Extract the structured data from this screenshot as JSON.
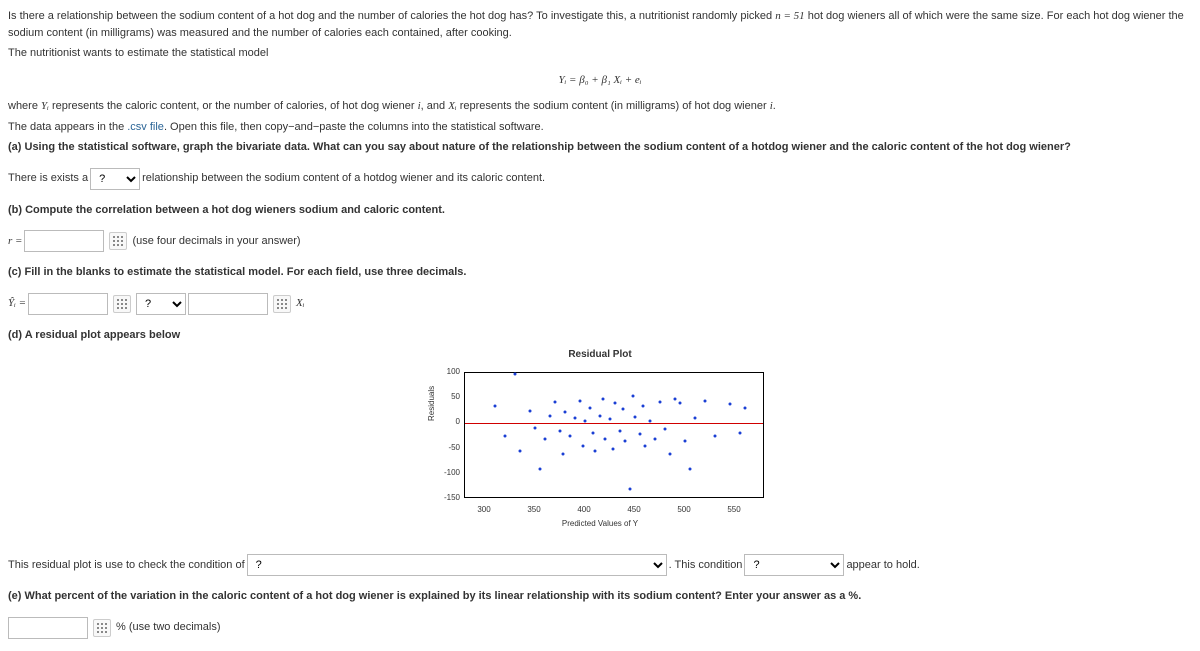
{
  "intro": {
    "line1_a": "Is there a relationship between the sodium content of a hot dog and the number of calories the hot dog has? To investigate this, a nutritionist randomly picked ",
    "n_eq": "n = 51",
    "line1_b": " hot dog wieners all of which were the same size. For each hot dog wiener the sodium content (in milligrams) was measured and the number of calories each contained, after cooking.",
    "line2": "The nutritionist wants to estimate the statistical model"
  },
  "equation": "Yᵢ = β₀ + β₁ Xᵢ + eᵢ",
  "where": {
    "a": "where ",
    "Yi": "Yᵢ",
    "b": " represents the caloric content, or the number of calories, of hot dog wiener ",
    "i1": "i",
    "c": ", and ",
    "Xi": "Xᵢ",
    "d": " represents the sodium content (in milligrams) of hot dog wiener ",
    "i2": "i",
    "e": "."
  },
  "datafile": {
    "a": "The data appears in the ",
    "link": ".csv file",
    "b": ". Open this file, then copy−and−paste the columns into the statistical software."
  },
  "partA": {
    "prompt": "(a) Using the statistical software, graph the bivariate data. What can you say about nature of the relationship between the sodium content of a hotdog wiener and the caloric content of the hot dog wiener?",
    "pre": "There is exists a ",
    "opt": "?",
    "post": " relationship between the sodium content of a hotdog wiener and its caloric content."
  },
  "partB": {
    "prompt": "(b) Compute the correlation between a hot dog wieners sodium and caloric content.",
    "r": "r =",
    "hint": "(use four decimals in your answer)"
  },
  "partC": {
    "prompt": "(c) Fill in the blanks to estimate the statistical model. For each field, use three decimals.",
    "yhat": "Ŷᵢ =",
    "op": "?",
    "xi": "Xᵢ"
  },
  "partD": {
    "prompt": "(d) A residual plot appears below"
  },
  "chart": {
    "title": "Residual Plot",
    "ylabel": "Residuals",
    "xlabel": "Predicted Values of Y",
    "xlim": [
      280,
      580
    ],
    "ylim": [
      -150,
      100
    ],
    "xticks": [
      300,
      350,
      400,
      450,
      500,
      550
    ],
    "yticks": [
      -150,
      -100,
      -50,
      0,
      50,
      100
    ],
    "point_color": "#1a3fd4",
    "zero_color": "#d00000",
    "points": [
      [
        310,
        35
      ],
      [
        320,
        -25
      ],
      [
        330,
        98
      ],
      [
        335,
        -55
      ],
      [
        345,
        25
      ],
      [
        350,
        -10
      ],
      [
        355,
        -90
      ],
      [
        360,
        -30
      ],
      [
        365,
        15
      ],
      [
        370,
        42
      ],
      [
        375,
        -15
      ],
      [
        378,
        -60
      ],
      [
        380,
        22
      ],
      [
        385,
        -25
      ],
      [
        390,
        10
      ],
      [
        395,
        45
      ],
      [
        398,
        -45
      ],
      [
        400,
        5
      ],
      [
        405,
        30
      ],
      [
        408,
        -20
      ],
      [
        410,
        -55
      ],
      [
        415,
        15
      ],
      [
        418,
        48
      ],
      [
        420,
        -30
      ],
      [
        425,
        8
      ],
      [
        428,
        -50
      ],
      [
        430,
        40
      ],
      [
        435,
        -15
      ],
      [
        438,
        28
      ],
      [
        440,
        -35
      ],
      [
        445,
        -130
      ],
      [
        448,
        55
      ],
      [
        450,
        12
      ],
      [
        455,
        -22
      ],
      [
        458,
        35
      ],
      [
        460,
        -45
      ],
      [
        465,
        5
      ],
      [
        470,
        -30
      ],
      [
        475,
        42
      ],
      [
        480,
        -12
      ],
      [
        485,
        -60
      ],
      [
        490,
        48
      ],
      [
        495,
        40
      ],
      [
        500,
        -35
      ],
      [
        505,
        -90
      ],
      [
        510,
        10
      ],
      [
        520,
        45
      ],
      [
        530,
        -25
      ],
      [
        545,
        38
      ],
      [
        555,
        -20
      ],
      [
        560,
        30
      ]
    ]
  },
  "residCheck": {
    "a": "This residual plot is use to check the condition of ",
    "opt1": "?",
    "b": ". This condition ",
    "opt2": "?",
    "c": " appear to hold."
  },
  "partE": {
    "prompt": "(e) What percent of the variation in the caloric content of a hot dog wiener is explained by its linear relationship with its sodium content? Enter your answer as a %.",
    "post": "% (use two decimals)"
  }
}
